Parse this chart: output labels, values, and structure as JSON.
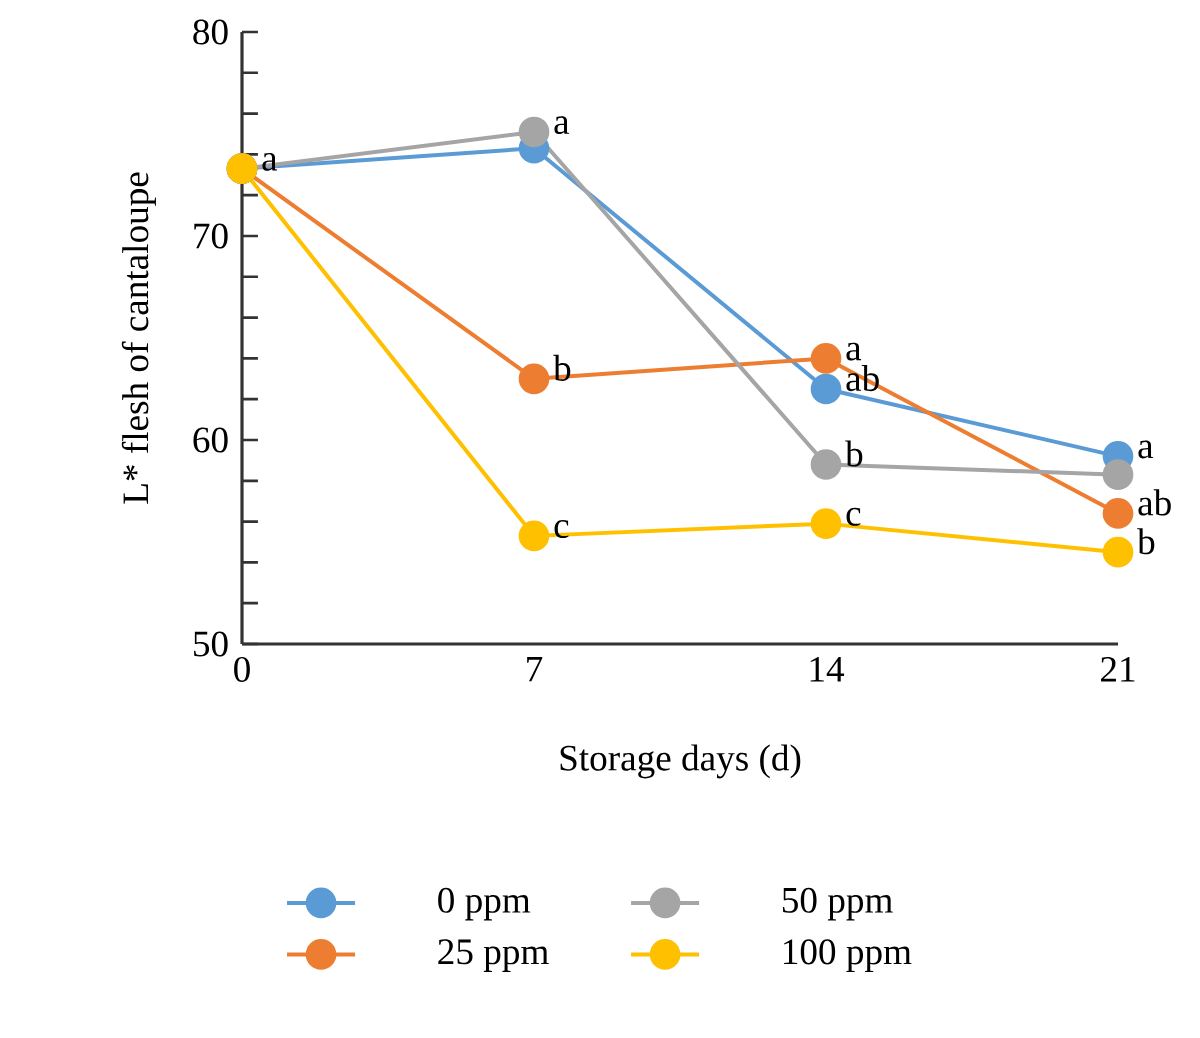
{
  "chart_data": {
    "type": "line",
    "xlabel": "Storage days (d)",
    "ylabel": "L* flesh of cantaloupe",
    "x": [
      0,
      7,
      14,
      21
    ],
    "xlim": [
      0,
      21
    ],
    "xticks": [
      0,
      7,
      14,
      21
    ],
    "ylim": [
      50,
      80
    ],
    "yticks": [
      50,
      60,
      70,
      80
    ],
    "series": [
      {
        "name": "0 ppm",
        "color": "#5b9bd5",
        "values": [
          73.3,
          74.3,
          62.5,
          59.2
        ]
      },
      {
        "name": "25 ppm",
        "color": "#ed7d31",
        "values": [
          73.3,
          63.0,
          64.0,
          56.4
        ]
      },
      {
        "name": "50 ppm",
        "color": "#a5a5a5",
        "values": [
          73.3,
          75.1,
          58.8,
          58.3
        ]
      },
      {
        "name": "100 ppm",
        "color": "#ffc000",
        "values": [
          73.3,
          55.3,
          55.9,
          54.5
        ]
      }
    ],
    "annotations": [
      {
        "text": "a",
        "x": 0,
        "y": 73.3
      },
      {
        "text": "a",
        "x": 7,
        "y": 75.1
      },
      {
        "text": "b",
        "x": 7,
        "y": 63.0
      },
      {
        "text": "c",
        "x": 7,
        "y": 55.3
      },
      {
        "text": "a",
        "x": 14,
        "y": 64.0
      },
      {
        "text": "ab",
        "x": 14,
        "y": 62.5
      },
      {
        "text": "b",
        "x": 14,
        "y": 58.8
      },
      {
        "text": "c",
        "x": 14,
        "y": 55.9
      },
      {
        "text": "a",
        "x": 21,
        "y": 59.2
      },
      {
        "text": "ab",
        "x": 21,
        "y": 56.4
      },
      {
        "text": "b",
        "x": 21,
        "y": 54.5
      }
    ],
    "legend": "bottom",
    "marker": "circle",
    "line_style": "solid",
    "grid": false
  }
}
